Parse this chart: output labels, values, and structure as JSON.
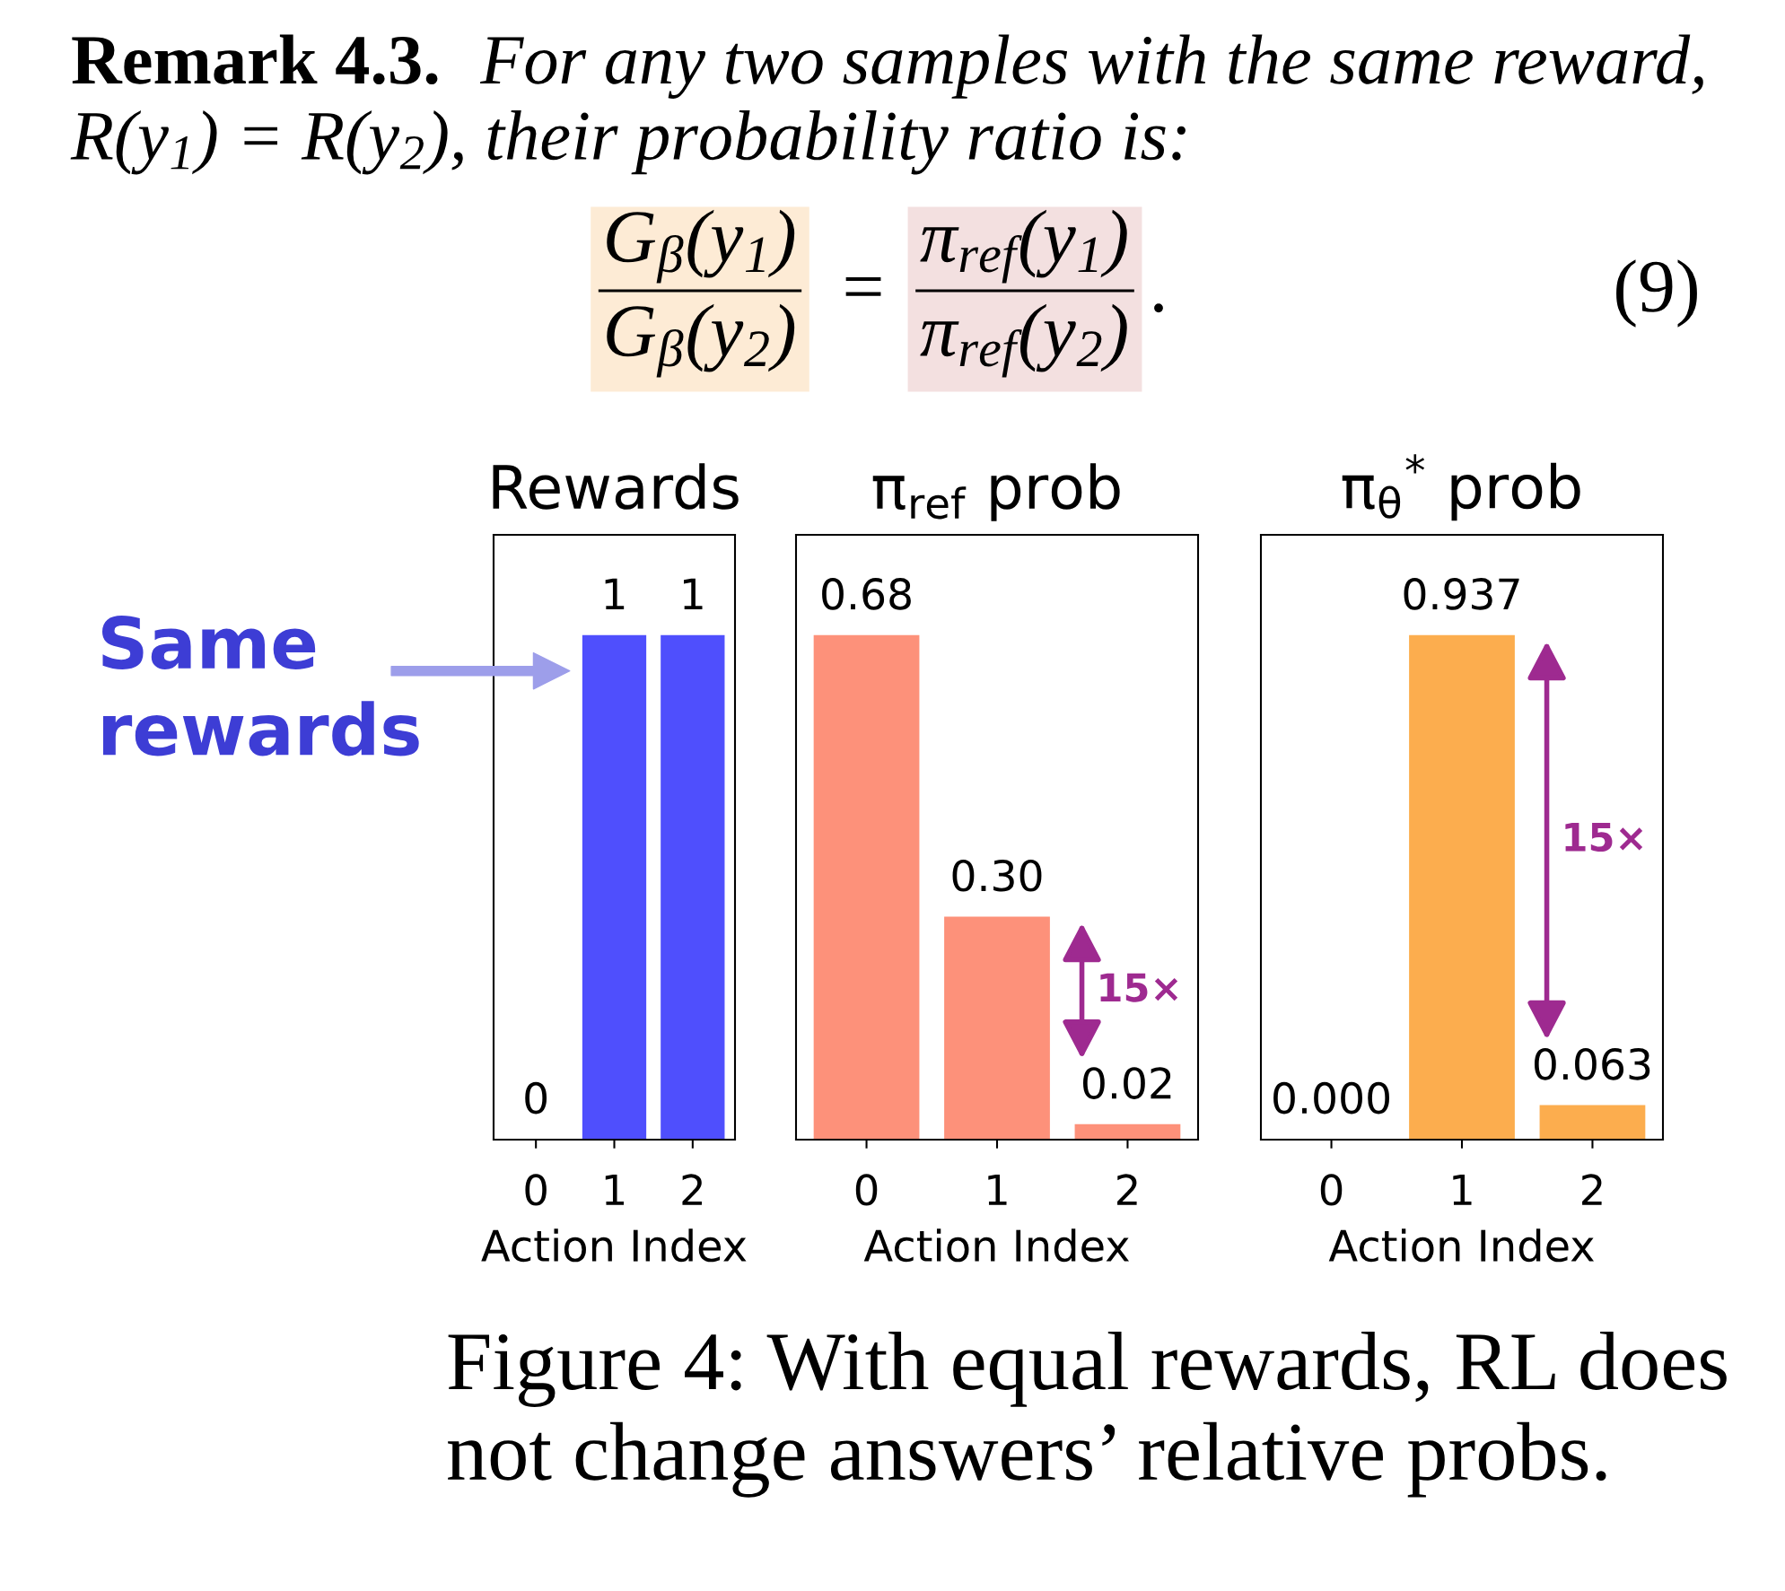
{
  "chart_data": [
    {
      "type": "other",
      "annotations": [
        "Remark 4.3.",
        "For any two samples with the same reward,",
        "R(y$_{1}$) = R(y$_{2}$), their probability ratio is:",
        "G$_{β}$(y$_{1}$)",
        "G$_{β}$(y$_{2}$)",
        "=",
        "π$_{ref}$(y$_{1}$)",
        "π$_{ref}$(y$_{2}$)",
        ".",
        "(9)"
      ]
    },
    {
      "type": "bar",
      "title": "Rewards",
      "xlabel": "Action Index",
      "categories": [
        "0",
        "1",
        "2"
      ],
      "values": [
        0,
        1,
        1
      ],
      "color": "#4f4ffd",
      "data_labels": true,
      "tick_labels": "x",
      "annotations": [
        "Same\nrewards"
      ]
    },
    {
      "type": "bar",
      "title": "π$_{ref}$ prob",
      "xlabel": "Action Index",
      "categories": [
        "0",
        "1",
        "2"
      ],
      "values": [
        0.68,
        0.3,
        0.02
      ],
      "color": "#fd917a",
      "value_labels": [
        "0.68",
        "0.30",
        "0.02"
      ],
      "tick_labels": "x",
      "annotations": [
        "15×"
      ]
    },
    {
      "type": "bar",
      "title": "π$_{θ}$$^{*}$ prob",
      "xlabel": "Action Index",
      "categories": [
        "0",
        "1",
        "2"
      ],
      "values": [
        0.0,
        0.937,
        0.063
      ],
      "color": "#fcad4e",
      "value_labels": [
        "0.000",
        "0.937",
        "0.063"
      ],
      "tick_labels": "x",
      "annotations": [
        "15×"
      ]
    },
    {
      "type": "other",
      "annotations": [
        "Figure 4: With equal rewards, RL does\nnot change answers’ relative probs."
      ]
    }
  ]
}
